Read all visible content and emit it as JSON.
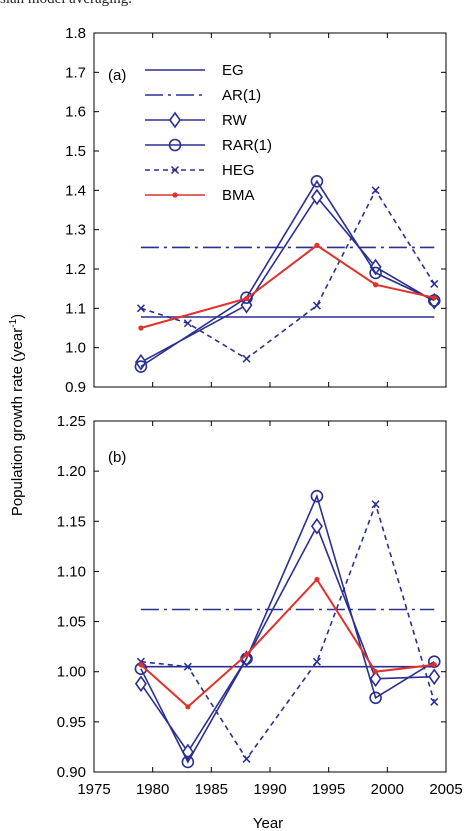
{
  "caption": "sian model averaging.",
  "ylabel_main": "Population growth rate (year",
  "ylabel_sup": "-1",
  "ylabel_close": ")",
  "xlabel": "Year",
  "colors": {
    "navy": "#2b2f8f",
    "red": "#e0312a"
  },
  "legend": [
    {
      "name": "EG",
      "style": "solid",
      "marker": "none",
      "color": "#2b2f8f"
    },
    {
      "name": "AR(1)",
      "style": "dashdot",
      "marker": "none",
      "color": "#2b2f8f"
    },
    {
      "name": "RW",
      "style": "solid",
      "marker": "diamond",
      "color": "#2b2f8f"
    },
    {
      "name": "RAR(1)",
      "style": "solid",
      "marker": "circle",
      "color": "#2b2f8f"
    },
    {
      "name": "HEG",
      "style": "dashed",
      "marker": "x",
      "color": "#2b2f8f"
    },
    {
      "name": "BMA",
      "style": "solid",
      "marker": "dot",
      "color": "#e0312a"
    }
  ],
  "chart_data": [
    {
      "type": "line",
      "panel_label": "(a)",
      "xlim": [
        1975,
        2005
      ],
      "ylim": [
        0.9,
        1.8
      ],
      "xticks": [
        "1975",
        "1980",
        "1985",
        "1990",
        "1995",
        "2000",
        "2005"
      ],
      "yticks": [
        "0.9",
        "1.0",
        "1.1",
        "1.2",
        "1.3",
        "1.4",
        "1.5",
        "1.6",
        "1.7",
        "1.8"
      ],
      "series": [
        {
          "name": "EG",
          "x": [
            1979,
            2004
          ],
          "y": [
            1.078,
            1.078
          ]
        },
        {
          "name": "AR(1)",
          "x": [
            1979,
            2004
          ],
          "y": [
            1.255,
            1.255
          ]
        },
        {
          "name": "RW",
          "x": [
            1979,
            1988,
            1994,
            1999,
            2004
          ],
          "y": [
            0.963,
            1.108,
            1.383,
            1.205,
            1.118
          ]
        },
        {
          "name": "RAR(1)",
          "x": [
            1979,
            1988,
            1994,
            1999,
            2004
          ],
          "y": [
            0.952,
            1.127,
            1.423,
            1.19,
            1.12
          ]
        },
        {
          "name": "HEG",
          "x": [
            1979,
            1983,
            1988,
            1994,
            1999,
            2004
          ],
          "y": [
            1.1,
            1.062,
            0.972,
            1.107,
            1.4,
            1.162
          ]
        },
        {
          "name": "BMA",
          "x": [
            1979,
            1988,
            1994,
            1999,
            2004
          ],
          "y": [
            1.05,
            1.125,
            1.26,
            1.16,
            1.127
          ]
        }
      ]
    },
    {
      "type": "line",
      "panel_label": "(b)",
      "xlim": [
        1975,
        2005
      ],
      "ylim": [
        0.9,
        1.25
      ],
      "xticks": [
        "1975",
        "1980",
        "1985",
        "1990",
        "1995",
        "2000",
        "2005"
      ],
      "yticks": [
        "0.90",
        "0.95",
        "1.00",
        "1.05",
        "1.10",
        "1.15",
        "1.20",
        "1.25"
      ],
      "series": [
        {
          "name": "EG",
          "x": [
            1979,
            2004
          ],
          "y": [
            1.005,
            1.005
          ]
        },
        {
          "name": "AR(1)",
          "x": [
            1979,
            2004
          ],
          "y": [
            1.062,
            1.062
          ]
        },
        {
          "name": "RW",
          "x": [
            1979,
            1983,
            1988,
            1994,
            1999,
            2004
          ],
          "y": [
            0.988,
            0.92,
            1.013,
            1.145,
            0.993,
            0.995
          ]
        },
        {
          "name": "RAR(1)",
          "x": [
            1979,
            1983,
            1988,
            1994,
            1999,
            2004
          ],
          "y": [
            1.003,
            0.91,
            1.013,
            1.175,
            0.974,
            1.01
          ]
        },
        {
          "name": "HEG",
          "x": [
            1979,
            1983,
            1988,
            1994,
            1999,
            2004
          ],
          "y": [
            1.01,
            1.005,
            0.913,
            1.01,
            1.167,
            0.97
          ]
        },
        {
          "name": "BMA",
          "x": [
            1979,
            1983,
            1988,
            1994,
            1999,
            2004
          ],
          "y": [
            1.007,
            0.965,
            1.017,
            1.092,
            1.0,
            1.007
          ]
        }
      ]
    }
  ]
}
